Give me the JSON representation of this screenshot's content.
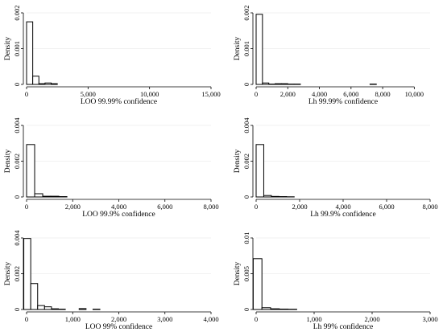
{
  "chart_data": [
    {
      "type": "bar",
      "xlabel": "LOO 99.99% confidence",
      "ylabel": "Density",
      "xlim": [
        0,
        15000
      ],
      "ylim": [
        0,
        0.002
      ],
      "xticks": [
        0,
        5000,
        10000,
        15000
      ],
      "xtick_labels": [
        "0",
        "5,000",
        "10,000",
        "15,000"
      ],
      "yticks": [
        0,
        0.001,
        0.002
      ],
      "ytick_labels": [
        "0",
        "0.001",
        "0.002"
      ],
      "grid": true,
      "bins": [
        [
          0,
          500,
          0.00175
        ],
        [
          500,
          1000,
          0.00023
        ],
        [
          1000,
          1500,
          2e-05
        ],
        [
          1500,
          2000,
          4e-05
        ],
        [
          2000,
          2500,
          2e-05
        ]
      ]
    },
    {
      "type": "bar",
      "xlabel": "Lh 99.99% confidence",
      "ylabel": "Density",
      "xlim": [
        0,
        11000
      ],
      "ylim": [
        0,
        0.002
      ],
      "xticks": [
        0,
        2000,
        4000,
        6000,
        8000,
        10000
      ],
      "xtick_labels": [
        "0",
        "2,000",
        "4,000",
        "6,000",
        "8,000",
        "10,000"
      ],
      "yticks": [
        0,
        0.001,
        0.002
      ],
      "ytick_labels": [
        "0",
        "0.001",
        "0.002"
      ],
      "grid": true,
      "bins": [
        [
          0,
          400,
          0.00196
        ],
        [
          400,
          800,
          4e-05
        ],
        [
          800,
          1200,
          1e-05
        ],
        [
          1200,
          1600,
          2e-05
        ],
        [
          1600,
          2000,
          2e-05
        ],
        [
          2000,
          2400,
          1e-05
        ],
        [
          2400,
          2800,
          1e-05
        ],
        [
          7200,
          7600,
          1e-05
        ]
      ]
    },
    {
      "type": "bar",
      "xlabel": "LOO 99.9% confidence",
      "ylabel": "Density",
      "xlim": [
        0,
        8000
      ],
      "ylim": [
        0,
        0.004
      ],
      "xticks": [
        0,
        2000,
        4000,
        6000,
        8000
      ],
      "xtick_labels": [
        "0",
        "2,000",
        "4,000",
        "6,000",
        "8,000"
      ],
      "yticks": [
        0,
        0.002,
        0.004
      ],
      "ytick_labels": [
        "0",
        "0.002",
        "0.004"
      ],
      "grid": true,
      "bins": [
        [
          0,
          350,
          0.00293
        ],
        [
          350,
          700,
          0.00018
        ],
        [
          700,
          1050,
          4e-05
        ],
        [
          1050,
          1400,
          4e-05
        ],
        [
          1400,
          1750,
          2e-05
        ]
      ]
    },
    {
      "type": "bar",
      "xlabel": "Lh 99.9% confidence",
      "ylabel": "Density",
      "xlim": [
        0,
        8000
      ],
      "ylim": [
        0,
        0.004
      ],
      "xticks": [
        0,
        2000,
        4000,
        6000,
        8000
      ],
      "xtick_labels": [
        "0",
        "2,000",
        "4,000",
        "6,000",
        "8,000"
      ],
      "yticks": [
        0,
        0.002,
        0.004
      ],
      "ytick_labels": [
        "0",
        "0.002",
        "0.004"
      ],
      "grid": true,
      "bins": [
        [
          0,
          350,
          0.00293
        ],
        [
          350,
          700,
          8e-05
        ],
        [
          700,
          1050,
          3e-05
        ],
        [
          1050,
          1400,
          2e-05
        ],
        [
          1400,
          1750,
          1e-05
        ]
      ]
    },
    {
      "type": "bar",
      "xlabel": "LOO 99% confidence",
      "ylabel": "Density",
      "xlim": [
        0,
        4000
      ],
      "ylim": [
        0,
        0.004
      ],
      "xticks": [
        0,
        1000,
        2000,
        3000,
        4000
      ],
      "xtick_labels": [
        "0",
        "1,000",
        "2,000",
        "3,000",
        "4,000"
      ],
      "yticks": [
        0,
        0.002,
        0.004
      ],
      "ytick_labels": [
        "0",
        "0.002",
        "0.004"
      ],
      "grid": true,
      "bins": [
        [
          -60,
          90,
          0.00397
        ],
        [
          90,
          240,
          0.00145
        ],
        [
          240,
          390,
          0.00022
        ],
        [
          390,
          540,
          0.00015
        ],
        [
          540,
          690,
          4e-05
        ],
        [
          690,
          840,
          2e-05
        ],
        [
          1140,
          1290,
          5e-05
        ],
        [
          1440,
          1590,
          2e-05
        ]
      ]
    },
    {
      "type": "bar",
      "xlabel": "Lh 99% confidence",
      "ylabel": "Density",
      "xlim": [
        0,
        3000
      ],
      "ylim": [
        0,
        0.01
      ],
      "xticks": [
        0,
        1000,
        2000,
        3000
      ],
      "xtick_labels": [
        "0",
        "1,000",
        "2,000",
        "3,000"
      ],
      "yticks": [
        0,
        0.005,
        0.01
      ],
      "ytick_labels": [
        "0",
        "0.005",
        "0.01"
      ],
      "grid": true,
      "bins": [
        [
          -50,
          100,
          0.0071
        ],
        [
          100,
          250,
          0.00025
        ],
        [
          250,
          400,
          0.0001
        ],
        [
          400,
          550,
          6e-05
        ],
        [
          550,
          700,
          4e-05
        ]
      ]
    }
  ]
}
